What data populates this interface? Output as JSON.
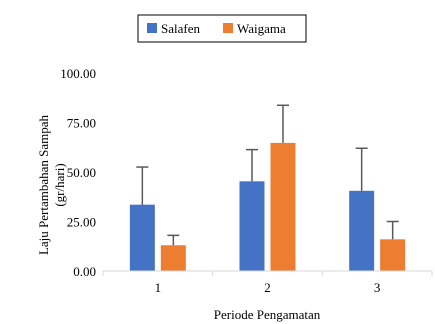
{
  "chart_data": {
    "type": "bar",
    "categories": [
      "1",
      "2",
      "3"
    ],
    "series": [
      {
        "name": "Salafen",
        "color": "#4472C4",
        "values": [
          33.5,
          45.3,
          40.5
        ],
        "error": [
          19.0,
          16.0,
          21.5
        ]
      },
      {
        "name": "Waigama",
        "color": "#ED7D31",
        "values": [
          13.0,
          64.7,
          16.0
        ],
        "error": [
          5.0,
          19.0,
          9.0
        ]
      }
    ],
    "title": "",
    "xlabel": "Periode Pengamatan",
    "ylabel_line1": "Laju Pertambahan Sampah",
    "ylabel_line2": "(gr/hari)",
    "ylim": [
      0,
      100
    ],
    "yticks": [
      "0.00",
      "25.00",
      "50.00",
      "75.00",
      "100.00"
    ],
    "grid": false,
    "legend_position": "top",
    "error_bar_color": "#595959"
  }
}
